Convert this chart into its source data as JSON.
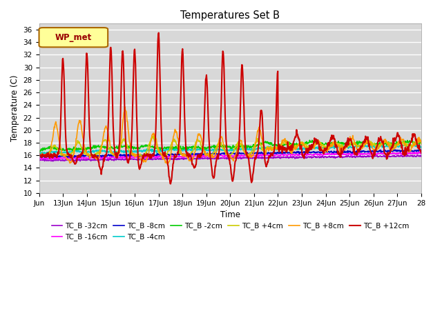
{
  "title": "Temperatures Set B",
  "xlabel": "Time",
  "ylabel": "Temperature (C)",
  "ylim": [
    10,
    37
  ],
  "yticks": [
    10,
    12,
    14,
    16,
    18,
    20,
    22,
    24,
    26,
    28,
    30,
    32,
    34,
    36
  ],
  "plot_bg_color": "#d8d8d8",
  "series": [
    {
      "label": "TC_B -32cm",
      "color": "#9900cc",
      "lw": 1.2
    },
    {
      "label": "TC_B -16cm",
      "color": "#ff00ff",
      "lw": 1.2
    },
    {
      "label": "TC_B -8cm",
      "color": "#0000cc",
      "lw": 1.2
    },
    {
      "label": "TC_B -4cm",
      "color": "#00cccc",
      "lw": 1.2
    },
    {
      "label": "TC_B -2cm",
      "color": "#00cc00",
      "lw": 1.2
    },
    {
      "label": "TC_B +4cm",
      "color": "#cccc00",
      "lw": 1.2
    },
    {
      "label": "TC_B +8cm",
      "color": "#ff9900",
      "lw": 1.2
    },
    {
      "label": "TC_B +12cm",
      "color": "#cc0000",
      "lw": 1.5
    }
  ],
  "legend_label": "WP_met",
  "legend_bg": "#ffff99",
  "legend_edge": "#aa6600",
  "legend_text": "#990000",
  "x_tick_labels": [
    "Jun",
    "13Jun",
    "14Jun",
    "15Jun",
    "16Jun",
    "17Jun",
    "18Jun",
    "19Jun",
    "20Jun",
    "21Jun",
    "22Jun",
    "23Jun",
    "24Jun",
    "25Jun",
    "26Jun",
    "27Jun",
    "28"
  ],
  "n_points": 960
}
